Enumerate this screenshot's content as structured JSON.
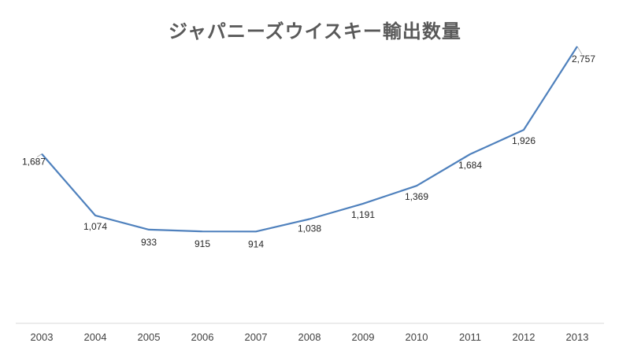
{
  "chart_data": {
    "type": "line",
    "title": "ジャパニーズウイスキー輸出数量",
    "xlabel": "",
    "ylabel": "",
    "categories": [
      "2003",
      "2004",
      "2005",
      "2006",
      "2007",
      "2008",
      "2009",
      "2010",
      "2011",
      "2012",
      "2013"
    ],
    "series": [
      {
        "values": [
          1687,
          1074,
          933,
          915,
          914,
          1038,
          1191,
          1369,
          1684,
          1926,
          2757
        ],
        "data_labels": [
          "1,687",
          "1,074",
          "933",
          "915",
          "914",
          "1,038",
          "1,191",
          "1,369",
          "1,684",
          "1,926",
          "2,757"
        ],
        "color": "#4F81BD"
      }
    ],
    "ylim": [
      0,
      3000
    ],
    "grid": false,
    "legend": "none",
    "axis_color": "#D9D9D9"
  }
}
